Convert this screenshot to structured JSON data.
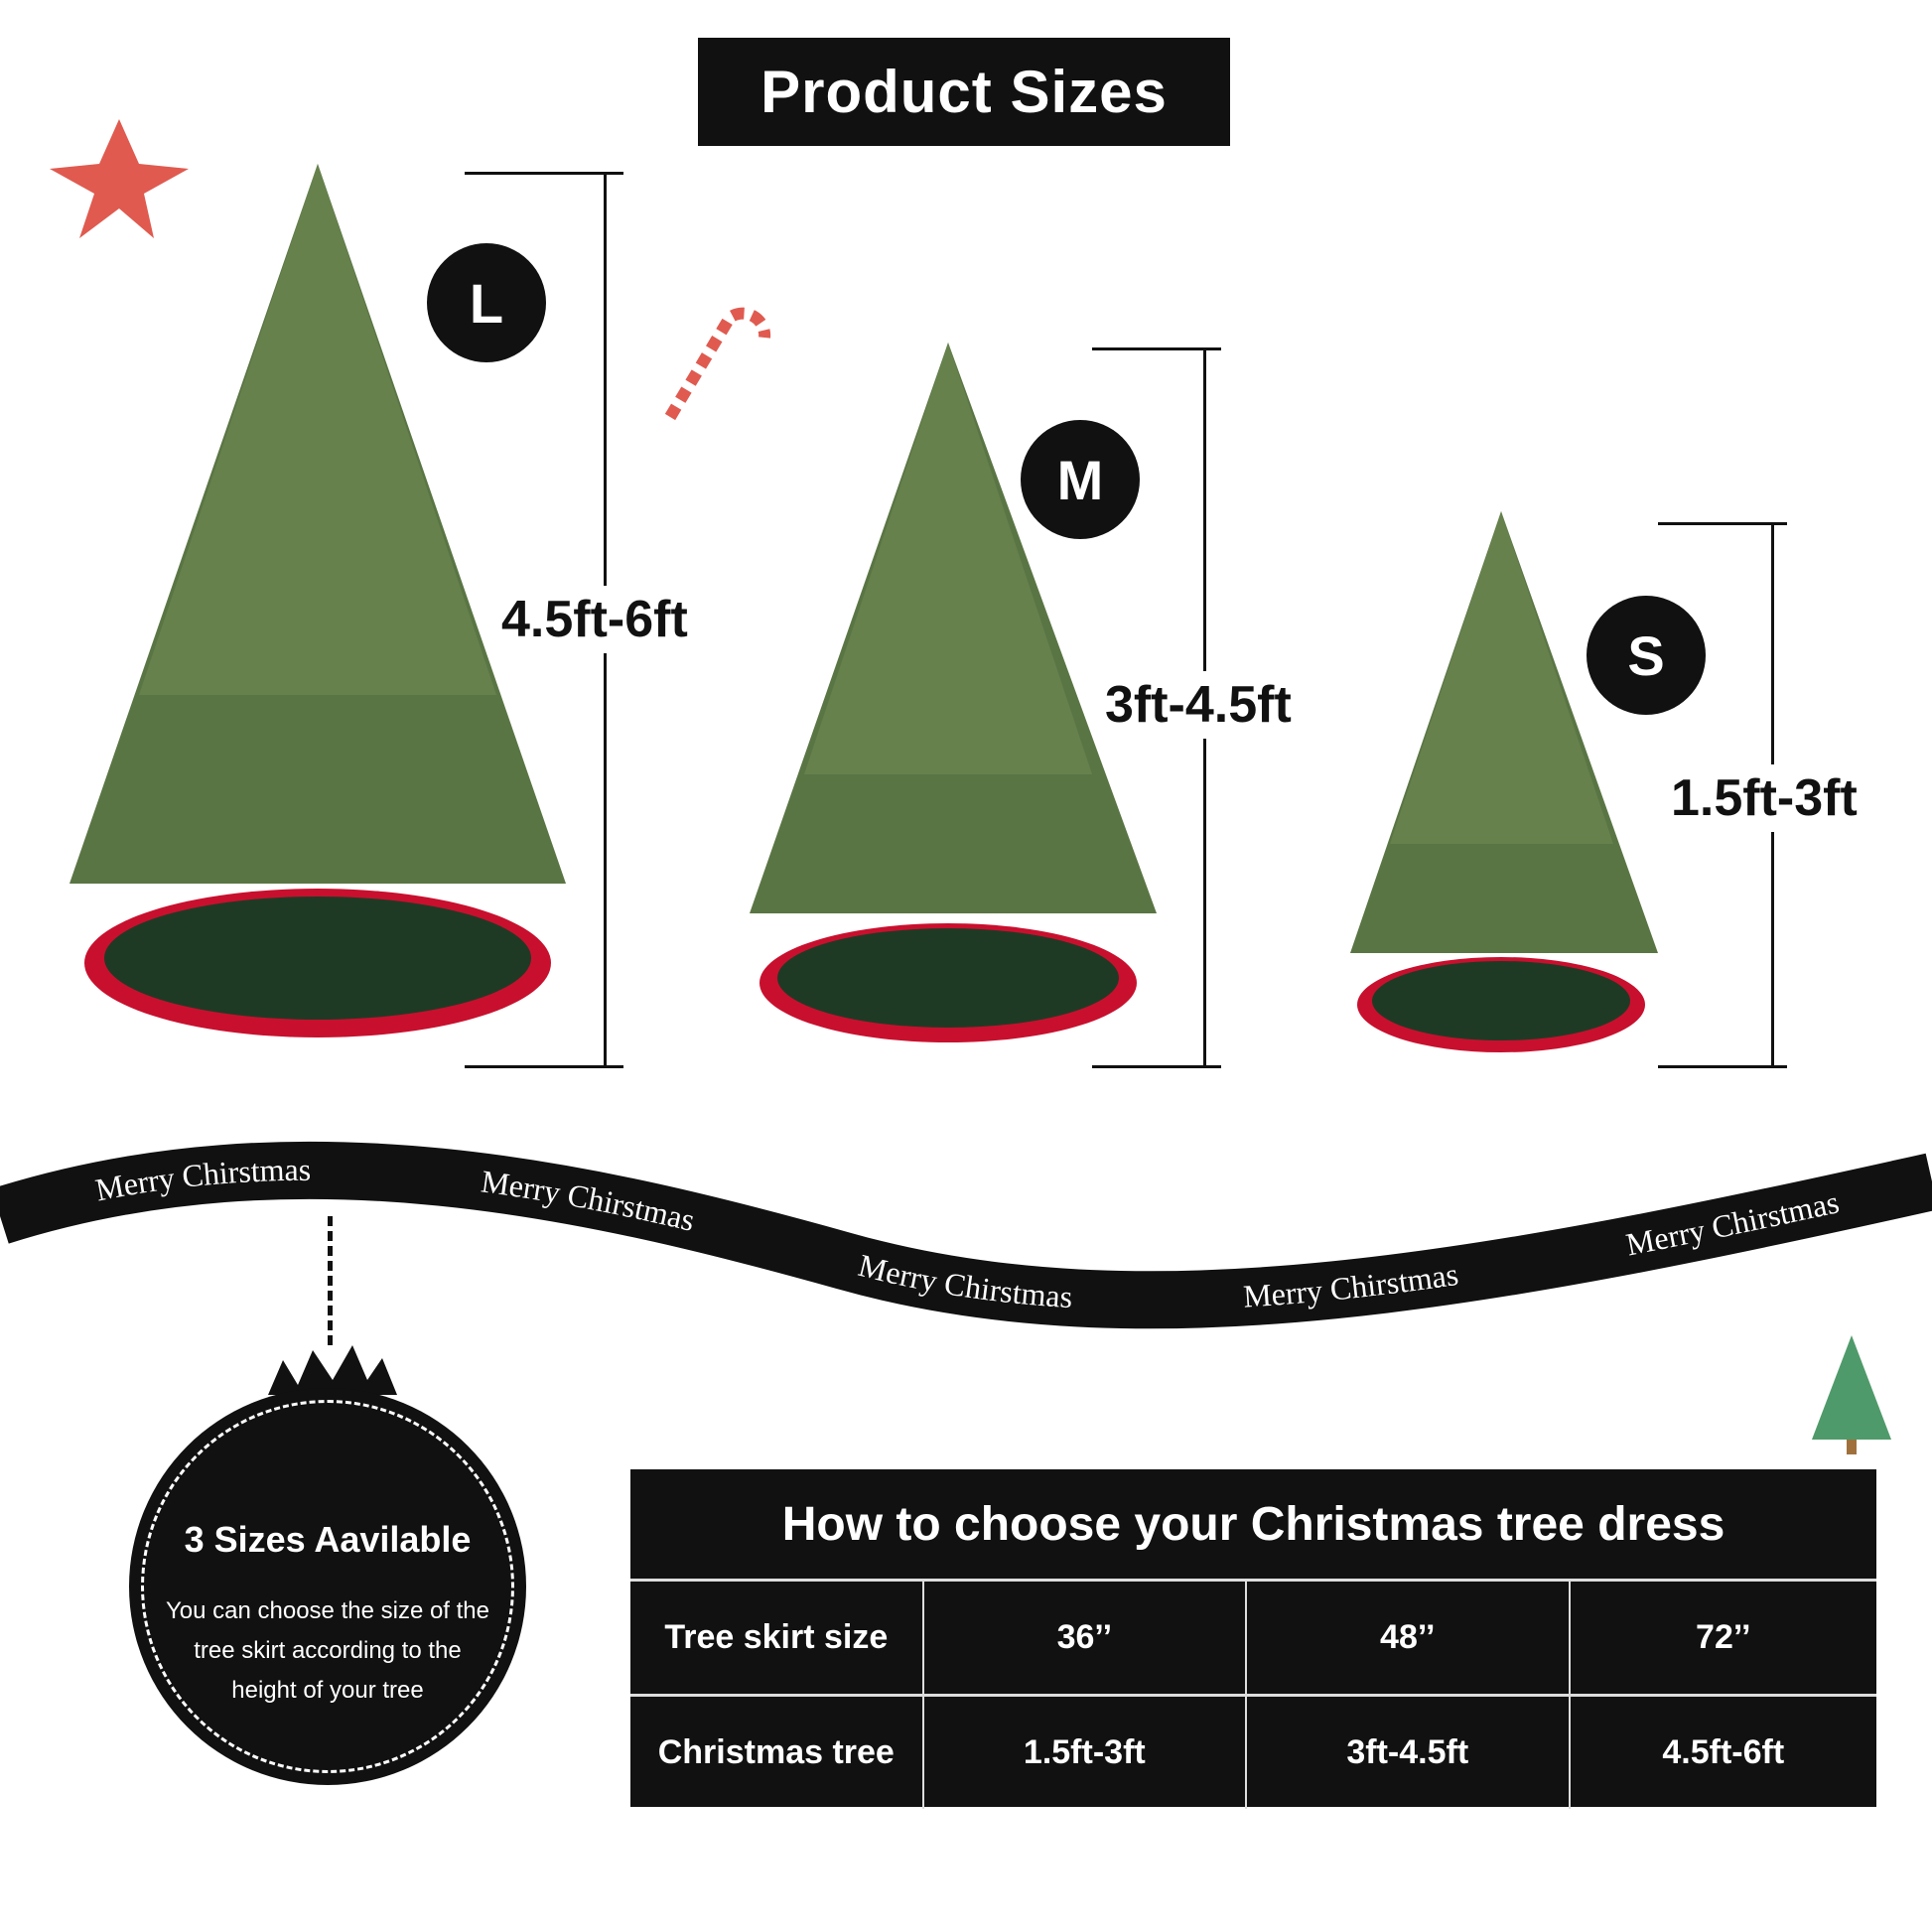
{
  "header": {
    "title": "Product Sizes"
  },
  "sizes": [
    {
      "badge": "L",
      "range": "4.5ft-6ft"
    },
    {
      "badge": "M",
      "range": "3ft-4.5ft"
    },
    {
      "badge": "S",
      "range": "1.5ft-3ft"
    }
  ],
  "ribbon": {
    "text": "Merry Chirstmas"
  },
  "info_circle": {
    "title": "3 Sizes Aavilable",
    "body": "You can choose the size of the tree skirt according to the height of your tree"
  },
  "size_table": {
    "title": "How to choose your Christmas tree dress",
    "rows": [
      {
        "label": "Tree skirt size",
        "values": [
          "36’’",
          "48’’",
          "72’’"
        ]
      },
      {
        "label": "Christmas tree",
        "values": [
          "1.5ft-3ft",
          "3ft-4.5ft",
          "4.5ft-6ft"
        ]
      }
    ]
  },
  "colors": {
    "tree_green": "#4f6b3a",
    "skirt_green": "#1f3a24",
    "skirt_red": "#c8102e",
    "ink": "#111111"
  }
}
